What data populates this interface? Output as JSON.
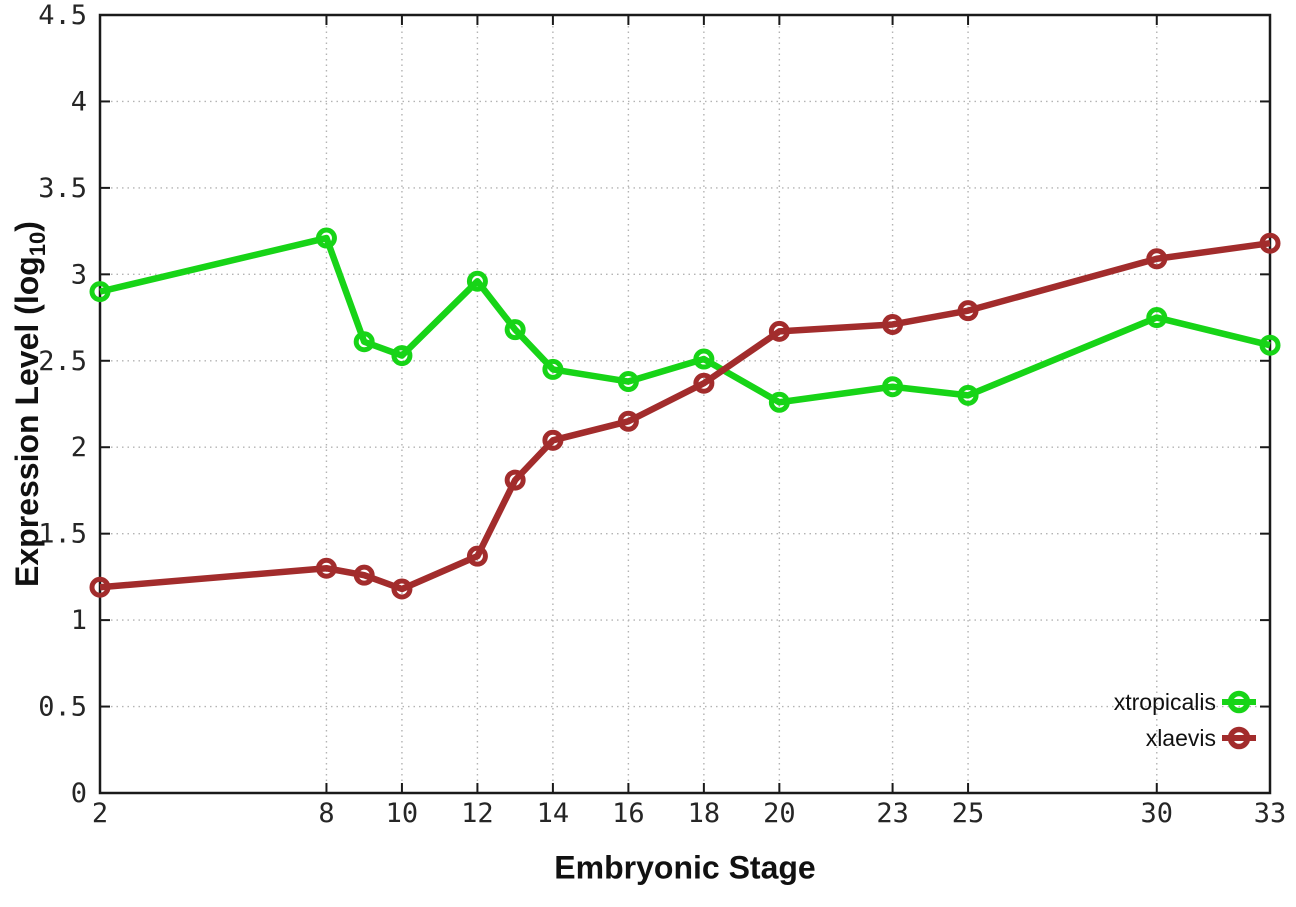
{
  "chart_data": {
    "type": "line",
    "title": "",
    "xlabel": "Embryonic Stage",
    "ylabel": "Expression Level (log10)",
    "ylabel_parts": {
      "main": "Expression Level (log",
      "sub": "10",
      "end": ")"
    },
    "xlim": [
      2,
      33
    ],
    "ylim": [
      0,
      4.5
    ],
    "x_ticks": [
      2,
      8,
      10,
      12,
      14,
      16,
      18,
      20,
      23,
      25,
      30,
      33
    ],
    "y_ticks": [
      0,
      0.5,
      1,
      1.5,
      2,
      2.5,
      3,
      3.5,
      4,
      4.5
    ],
    "grid": true,
    "legend_position": "inside-bottom-right",
    "series": [
      {
        "name": "xtropicalis",
        "color": "#17d417",
        "marker": "open-circle",
        "x": [
          2,
          8,
          9,
          10,
          12,
          13,
          14,
          16,
          18,
          20,
          23,
          25,
          30,
          33
        ],
        "y": [
          2.9,
          3.21,
          2.61,
          2.53,
          2.96,
          2.68,
          2.45,
          2.38,
          2.51,
          2.26,
          2.35,
          2.3,
          2.75,
          2.59
        ]
      },
      {
        "name": "xlaevis",
        "color": "#a22c2c",
        "marker": "open-circle",
        "x": [
          2,
          8,
          9,
          10,
          12,
          13,
          14,
          16,
          18,
          20,
          23,
          25,
          30,
          33
        ],
        "y": [
          1.19,
          1.3,
          1.26,
          1.18,
          1.37,
          1.81,
          2.04,
          2.15,
          2.37,
          2.67,
          2.71,
          2.79,
          3.09,
          3.18
        ]
      }
    ]
  },
  "style": {
    "background": "#ffffff",
    "border_color": "#1a1a1a",
    "grid_color": "#b3b3b3",
    "tick_label_color": "#262626",
    "legend_text_color": "#111111"
  }
}
